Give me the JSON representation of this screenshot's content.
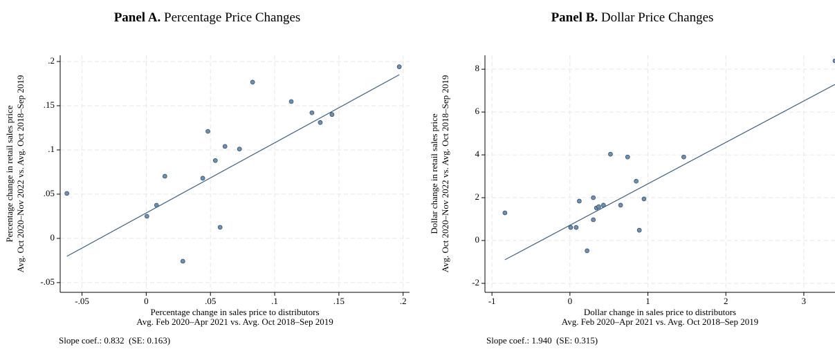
{
  "chart_data": [
    {
      "type": "scatter",
      "panel": "Panel A.",
      "title": "Percentage Price Changes",
      "xlabel": [
        "Percentage change in sales price to distributors",
        "Avg. Feb 2020–Apr 2021 vs. Avg. Oct 2018–Sep 2019"
      ],
      "ylabel": [
        "Percentage change in retail sales price",
        "Avg. Oct 2020–Nov 2022 vs. Avg. Oct 2018–Sep 2019"
      ],
      "note": "Slope coef.: 0.832  (SE: 0.163)",
      "xlim": [
        -0.067,
        0.205
      ],
      "ylim": [
        -0.061,
        0.207
      ],
      "xticks": [
        {
          "value": -0.05,
          "label": "-.05"
        },
        0,
        {
          "value": 0.05,
          "label": ".05"
        },
        {
          "value": 0.1,
          "label": ".1"
        },
        {
          "value": 0.15,
          "label": ".15"
        },
        {
          "value": 0.2,
          "label": ".2"
        }
      ],
      "yticks": [
        {
          "value": -0.05,
          "label": "-.05"
        },
        0,
        {
          "value": 0.05,
          "label": ".05"
        },
        {
          "value": 0.1,
          "label": ".1"
        },
        {
          "value": 0.15,
          "label": ".15"
        },
        {
          "value": 0.2,
          "label": ".2"
        }
      ],
      "grid": true,
      "series": [
        {
          "color": "#6f8fae",
          "x": [
            -0.0618,
            0.0005,
            0.008,
            0.0145,
            0.0285,
            0.044,
            0.048,
            0.0538,
            0.0575,
            0.0613,
            0.0726,
            0.0828,
            0.1129,
            0.129,
            0.1355,
            0.1446,
            0.197
          ],
          "values": [
            0.0508,
            0.025,
            0.0375,
            0.0703,
            -0.0258,
            0.068,
            0.121,
            0.088,
            0.0125,
            0.104,
            0.101,
            0.1766,
            0.1547,
            0.142,
            0.131,
            0.14,
            0.194
          ]
        }
      ],
      "fit": {
        "color": "#3f5f7f",
        "x": [
          -0.0618,
          0.197
        ],
        "values": [
          -0.0203,
          0.185
        ]
      }
    },
    {
      "type": "scatter",
      "panel": "Panel B.",
      "title": "Dollar Price Changes",
      "xlabel": [
        "Dollar change in sales price to distributors",
        "Avg. Feb 2020–Apr 2021 vs. Avg. Oct 2018–Sep 2019"
      ],
      "ylabel": [
        "Dollar change in retail sales price",
        "Avg. Oct 2020–Nov 2022 vs. Avg. Oct 2018–Sep 2019"
      ],
      "note": "Slope coef.: 1.940  (SE: 0.315)",
      "xlim": [
        -1.09,
        3.4
      ],
      "ylim": [
        -2.42,
        8.65
      ],
      "xticks": [
        -1,
        0,
        1,
        2,
        3
      ],
      "yticks": [
        -2,
        0,
        2,
        4,
        6,
        8
      ],
      "grid": true,
      "series": [
        {
          "color": "#6f8fae",
          "x": [
            -0.834,
            0.01,
            0.08,
            0.12,
            0.22,
            0.3,
            0.3,
            0.34,
            0.37,
            0.43,
            0.52,
            0.65,
            0.74,
            0.85,
            0.89,
            0.95,
            1.46,
            3.4
          ],
          "values": [
            1.29,
            0.61,
            0.61,
            1.84,
            -0.48,
            2.0,
            0.97,
            1.52,
            1.58,
            1.65,
            4.03,
            1.65,
            3.9,
            2.77,
            0.48,
            1.94,
            3.9,
            8.39
          ]
        }
      ],
      "fit": {
        "color": "#3f5f7f",
        "x": [
          -0.834,
          3.4
        ],
        "values": [
          -0.9,
          7.29
        ]
      }
    }
  ]
}
